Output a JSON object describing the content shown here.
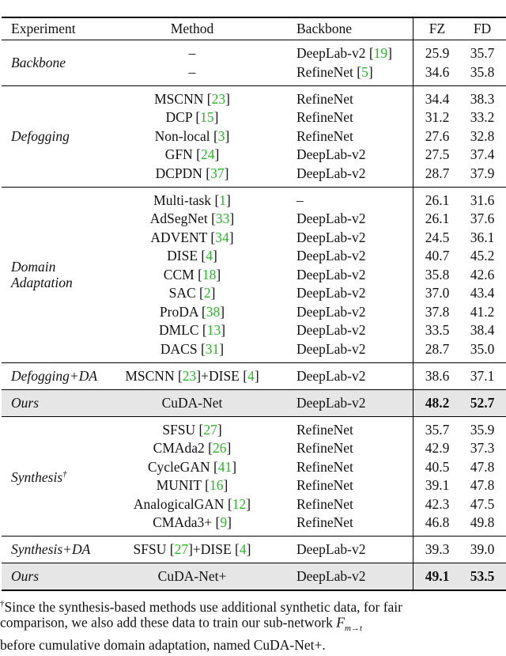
{
  "header": {
    "experiment": "Experiment",
    "method": "Method",
    "backbone": "Backbone",
    "fz": "FZ",
    "fd": "FD"
  },
  "groups": [
    {
      "label": [
        "Backbone"
      ],
      "rows": [
        {
          "method": "–",
          "backbone": "DeepLab-v2 [19]",
          "fz": "25.9",
          "fd": "35.7"
        },
        {
          "method": "–",
          "backbone": "RefineNet [5]",
          "fz": "34.6",
          "fd": "35.8"
        }
      ]
    },
    {
      "label": [
        "Defogging"
      ],
      "rows": [
        {
          "method": "MSCNN [23]",
          "backbone": "RefineNet",
          "fz": "34.4",
          "fd": "38.3"
        },
        {
          "method": "DCP [15]",
          "backbone": "RefineNet",
          "fz": "31.2",
          "fd": "33.2"
        },
        {
          "method": "Non-local [3]",
          "backbone": "RefineNet",
          "fz": "27.6",
          "fd": "32.8"
        },
        {
          "method": "GFN [24]",
          "backbone": "DeepLab-v2",
          "fz": "27.5",
          "fd": "37.4"
        },
        {
          "method": "DCPDN [37]",
          "backbone": "DeepLab-v2",
          "fz": "28.7",
          "fd": "37.9"
        }
      ]
    },
    {
      "label": [
        "Domain",
        "Adaptation"
      ],
      "rows": [
        {
          "method": "Multi-task [1]",
          "backbone": "–",
          "fz": "26.1",
          "fd": "31.6"
        },
        {
          "method": "AdSegNet [33]",
          "backbone": "DeepLab-v2",
          "fz": "26.1",
          "fd": "37.6"
        },
        {
          "method": "ADVENT [34]",
          "backbone": "DeepLab-v2",
          "fz": "24.5",
          "fd": "36.1"
        },
        {
          "method": "DISE [4]",
          "backbone": "DeepLab-v2",
          "fz": "40.7",
          "fd": "45.2"
        },
        {
          "method": "CCM [18]",
          "backbone": "DeepLab-v2",
          "fz": "35.8",
          "fd": "42.6"
        },
        {
          "method": "SAC [2]",
          "backbone": "DeepLab-v2",
          "fz": "37.0",
          "fd": "43.4"
        },
        {
          "method": "ProDA [38]",
          "backbone": "DeepLab-v2",
          "fz": "37.8",
          "fd": "41.2"
        },
        {
          "method": "DMLC [13]",
          "backbone": "DeepLab-v2",
          "fz": "33.5",
          "fd": "38.4"
        },
        {
          "method": "DACS [31]",
          "backbone": "DeepLab-v2",
          "fz": "28.7",
          "fd": "35.0"
        }
      ]
    },
    {
      "label": [
        "Defogging+DA"
      ],
      "rows": [
        {
          "method": "MSCNN [23]+DISE [4]",
          "backbone": "DeepLab-v2",
          "fz": "38.6",
          "fd": "37.1"
        }
      ]
    },
    {
      "label": [
        "Ours"
      ],
      "highlight": true,
      "rows": [
        {
          "method": "CuDA-Net",
          "backbone": "DeepLab-v2",
          "fz": "48.2",
          "fd": "52.7"
        }
      ]
    },
    {
      "label": [
        "Synthesis"
      ],
      "mark": "†",
      "rows": [
        {
          "method": "SFSU [27]",
          "backbone": "RefineNet",
          "fz": "35.7",
          "fd": "35.9"
        },
        {
          "method": "CMAda2 [26]",
          "backbone": "RefineNet",
          "fz": "42.9",
          "fd": "37.3"
        },
        {
          "method": "CycleGAN [41]",
          "backbone": "RefineNet",
          "fz": "40.5",
          "fd": "47.8"
        },
        {
          "method": "MUNIT [16]",
          "backbone": "RefineNet",
          "fz": "39.1",
          "fd": "47.8"
        },
        {
          "method": "AnalogicalGAN [12]",
          "backbone": "RefineNet",
          "fz": "42.3",
          "fd": "47.5"
        },
        {
          "method": "CMAda3+ [9]",
          "backbone": "RefineNet",
          "fz": "46.8",
          "fd": "49.8"
        }
      ]
    },
    {
      "label": [
        "Synthesis+DA"
      ],
      "rows": [
        {
          "method": "SFSU [27]+DISE [4]",
          "backbone": "DeepLab-v2",
          "fz": "39.3",
          "fd": "39.0"
        }
      ]
    },
    {
      "label": [
        "Ours"
      ],
      "highlight": true,
      "rows": [
        {
          "method": "CuDA-Net+",
          "backbone": "DeepLab-v2",
          "fz": "49.1",
          "fd": "53.5"
        }
      ]
    }
  ],
  "footnote": {
    "mark": "†",
    "line1": "Since the synthesis-based methods use additional synthetic data, for fair",
    "line2": "comparison, we also add these data to train our sub-network",
    "math_base": "F",
    "math_sub": "m→t",
    "line3": "before cumulative domain adaptation, named CuDA-Net+."
  }
}
